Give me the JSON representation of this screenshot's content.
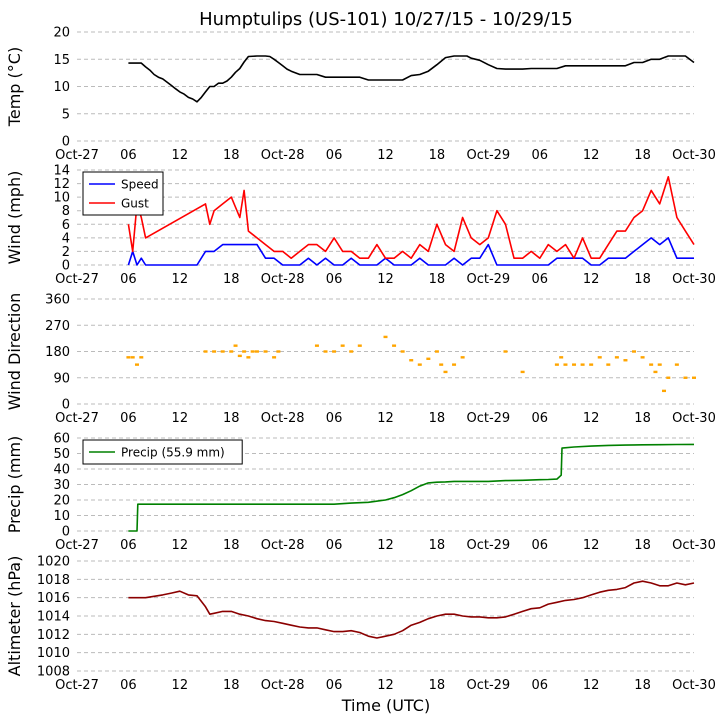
{
  "title": "Humptulips (US-101) 10/27/15 - 10/29/15",
  "xlabel": "Time (UTC)",
  "x_tick_labels": [
    "Oct-27",
    "06",
    "12",
    "18",
    "Oct-28",
    "06",
    "12",
    "18",
    "Oct-29",
    "06",
    "12",
    "18",
    "Oct-30"
  ],
  "x_range_hours": [
    0,
    72
  ],
  "colors": {
    "temp": "#000000",
    "speed": "#0000ff",
    "gust": "#ff0000",
    "direction": "#ffa500",
    "precip": "#008000",
    "altimeter": "#8b0000",
    "grid": "#bbbbbb"
  },
  "chart_data": [
    {
      "type": "line",
      "id": "temp",
      "ylabel": "Temp (°C)",
      "ylim": [
        0,
        20
      ],
      "yticks": [
        0,
        5,
        10,
        15,
        20
      ],
      "grid": true,
      "series": [
        {
          "name": "Temp",
          "color": "#000000",
          "x": [
            6,
            7.5,
            8,
            8.5,
            9,
            9.5,
            10,
            10.5,
            11,
            11.5,
            12,
            12.5,
            13,
            13.5,
            14,
            14.5,
            15,
            15.5,
            16,
            16.5,
            17,
            17.5,
            18,
            18.5,
            19,
            19.5,
            20,
            21,
            22,
            22.5,
            23,
            23.5,
            24,
            24.5,
            25,
            26,
            27,
            28,
            29,
            30,
            31,
            32,
            33,
            34,
            35,
            36,
            37,
            38,
            39,
            40,
            41,
            42,
            43,
            44,
            44.5,
            45,
            45.5,
            46,
            47,
            48,
            49,
            50,
            51,
            52,
            53,
            54,
            55,
            56,
            57,
            58,
            59,
            60,
            61,
            62,
            63,
            64,
            65,
            66,
            67,
            68,
            69,
            70,
            71,
            72
          ],
          "y": [
            14.3,
            14.3,
            13.6,
            13,
            12.2,
            11.7,
            11.4,
            10.8,
            10.2,
            9.6,
            9,
            8.6,
            8,
            7.7,
            7.2,
            8,
            9,
            10,
            10,
            10.6,
            10.6,
            11,
            11.7,
            12.6,
            13.3,
            14.5,
            15.5,
            15.6,
            15.6,
            15.5,
            15,
            14.4,
            13.8,
            13.2,
            12.8,
            12.2,
            12.2,
            12.2,
            11.7,
            11.7,
            11.7,
            11.7,
            11.7,
            11.2,
            11.2,
            11.2,
            11.2,
            11.2,
            12,
            12.2,
            12.8,
            14,
            15.3,
            15.6,
            15.6,
            15.6,
            15.6,
            15.2,
            14.8,
            14,
            13.3,
            13.2,
            13.2,
            13.2,
            13.3,
            13.3,
            13.3,
            13.3,
            13.8,
            13.8,
            13.8,
            13.8,
            13.8,
            13.8,
            13.8,
            13.8,
            14.4,
            14.4,
            15,
            15,
            15.6,
            15.6,
            15.6,
            14.4
          ]
        }
      ]
    },
    {
      "type": "line",
      "id": "wind",
      "ylabel": "Wind (mph)",
      "ylim": [
        0,
        14
      ],
      "yticks": [
        0,
        2,
        4,
        6,
        8,
        10,
        12,
        14
      ],
      "grid": true,
      "legend": {
        "location": "upper-left",
        "entries": [
          "Speed",
          "Gust"
        ]
      },
      "series": [
        {
          "name": "Speed",
          "color": "#0000ff",
          "x": [
            6,
            6.5,
            7,
            7.5,
            8,
            12,
            13,
            14,
            15,
            16,
            17,
            18,
            19,
            20,
            21,
            22,
            23,
            24,
            25,
            26,
            27,
            28,
            29,
            30,
            31,
            32,
            33,
            34,
            35,
            36,
            37,
            38,
            39,
            40,
            41,
            42,
            43,
            44,
            45,
            46,
            47,
            48,
            49,
            50,
            51,
            52,
            53,
            54,
            55,
            56,
            57,
            58,
            59,
            60,
            61,
            62,
            63,
            64,
            65,
            66,
            67,
            68,
            69,
            70,
            71,
            72
          ],
          "y": [
            0,
            2,
            0,
            1,
            0,
            0,
            0,
            0,
            2,
            2,
            3,
            3,
            3,
            3,
            3,
            1,
            1,
            0,
            0,
            0,
            1,
            0,
            1,
            0,
            0,
            1,
            0,
            0,
            0,
            1,
            0,
            0,
            0,
            1,
            0,
            0,
            0,
            1,
            0,
            1,
            1,
            3,
            0,
            0,
            0,
            0,
            0,
            0,
            0,
            1,
            1,
            1,
            1,
            0,
            0,
            1,
            1,
            1,
            2,
            3,
            4,
            3,
            4,
            1,
            1,
            1
          ]
        },
        {
          "name": "Gust",
          "color": "#ff0000",
          "x": [
            6,
            6.5,
            7,
            7.5,
            8,
            15,
            15.5,
            16,
            17,
            18,
            19,
            19.5,
            20,
            21,
            22,
            23,
            24,
            25,
            26,
            27,
            28,
            29,
            30,
            31,
            32,
            33,
            34,
            35,
            36,
            37,
            38,
            39,
            40,
            41,
            42,
            43,
            44,
            45,
            46,
            47,
            48,
            49,
            50,
            51,
            52,
            53,
            54,
            55,
            56,
            57,
            58,
            59,
            60,
            61,
            62,
            63,
            64,
            65,
            66,
            67,
            68,
            69,
            70,
            71,
            72
          ],
          "y": [
            6,
            2,
            9,
            7,
            4,
            9,
            6,
            8,
            9,
            10,
            7,
            11,
            5,
            4,
            3,
            2,
            2,
            1,
            2,
            3,
            3,
            2,
            4,
            2,
            2,
            1,
            1,
            3,
            1,
            1,
            2,
            1,
            3,
            2,
            6,
            3,
            2,
            7,
            4,
            3,
            4,
            8,
            6,
            1,
            1,
            2,
            1,
            3,
            2,
            3,
            1,
            4,
            1,
            1,
            3,
            5,
            5,
            7,
            8,
            11,
            9,
            13,
            7,
            5,
            3
          ]
        }
      ]
    },
    {
      "type": "scatter",
      "id": "direction",
      "ylabel": "Wind Direction",
      "ylim": [
        0,
        360
      ],
      "yticks": [
        0,
        90,
        180,
        270,
        360
      ],
      "grid": true,
      "series": [
        {
          "name": "Direction",
          "color": "#ffa500",
          "x": [
            6,
            6.5,
            7,
            7.5,
            15,
            16,
            17,
            18,
            18.5,
            19,
            19.5,
            20,
            20.5,
            21,
            22,
            23,
            23.5,
            28,
            29,
            30,
            31,
            32,
            33,
            36,
            37,
            38,
            39,
            40,
            41,
            42,
            42.5,
            43,
            44,
            45,
            50,
            52,
            56,
            56.5,
            57,
            58,
            59,
            60,
            61,
            62,
            63,
            64,
            65,
            66,
            67,
            67.5,
            68,
            68.5,
            69,
            70,
            71,
            72
          ],
          "y": [
            160,
            160,
            135,
            160,
            180,
            180,
            180,
            180,
            200,
            165,
            180,
            160,
            180,
            180,
            180,
            160,
            180,
            200,
            180,
            180,
            200,
            180,
            200,
            230,
            200,
            180,
            150,
            135,
            155,
            180,
            135,
            110,
            135,
            160,
            180,
            110,
            135,
            160,
            135,
            135,
            135,
            135,
            160,
            135,
            160,
            150,
            180,
            160,
            135,
            110,
            135,
            45,
            90,
            135,
            90,
            90
          ]
        }
      ]
    },
    {
      "type": "line",
      "id": "precip",
      "ylabel": "Precip (mm)",
      "ylim": [
        0,
        60
      ],
      "yticks": [
        0,
        10,
        20,
        30,
        40,
        50,
        60
      ],
      "grid": true,
      "legend": {
        "location": "upper-left",
        "entries": [
          "Precip (55.9 mm)"
        ]
      },
      "series": [
        {
          "name": "Precip (55.9 mm)",
          "color": "#008000",
          "x": [
            6,
            7,
            7.1,
            16,
            24,
            30,
            32,
            34,
            36,
            37,
            38,
            39,
            40,
            41,
            42,
            43,
            44,
            46,
            48,
            50,
            52,
            54,
            55,
            56,
            56.5,
            56.6,
            58,
            60,
            62,
            64,
            66,
            68,
            70,
            72
          ],
          "y": [
            0,
            0,
            17.3,
            17.3,
            17.3,
            17.3,
            18,
            18.5,
            20,
            21.5,
            23.5,
            26,
            29,
            31,
            31.5,
            31.7,
            32,
            32,
            32,
            32.5,
            32.7,
            33.1,
            33.2,
            33.5,
            36,
            53.5,
            54.2,
            54.8,
            55.2,
            55.4,
            55.6,
            55.7,
            55.8,
            55.9
          ]
        }
      ]
    },
    {
      "type": "line",
      "id": "altimeter",
      "ylabel": "Altimeter (hPa)",
      "ylim": [
        1008,
        1020
      ],
      "yticks": [
        1008,
        1010,
        1012,
        1014,
        1016,
        1018,
        1020
      ],
      "grid": true,
      "series": [
        {
          "name": "Altimeter",
          "color": "#8b0000",
          "x": [
            6,
            8,
            10,
            11,
            12,
            13,
            14,
            15,
            15.5,
            16,
            17,
            18,
            19,
            20,
            21,
            22,
            23,
            24,
            25,
            26,
            27,
            28,
            29,
            30,
            31,
            32,
            33,
            34,
            35,
            36,
            37,
            38,
            39,
            40,
            41,
            42,
            43,
            44,
            45,
            46,
            47,
            48,
            49,
            50,
            51,
            52,
            53,
            54,
            55,
            56,
            57,
            58,
            59,
            60,
            61,
            62,
            63,
            64,
            65,
            66,
            67,
            68,
            69,
            70,
            71,
            72
          ],
          "y": [
            1016,
            1016,
            1016.3,
            1016.5,
            1016.7,
            1016.3,
            1016.2,
            1015,
            1014.2,
            1014.3,
            1014.5,
            1014.5,
            1014.2,
            1014,
            1013.7,
            1013.5,
            1013.4,
            1013.2,
            1013,
            1012.8,
            1012.7,
            1012.7,
            1012.5,
            1012.3,
            1012.3,
            1012.4,
            1012.2,
            1011.8,
            1011.6,
            1011.8,
            1012,
            1012.4,
            1013,
            1013.3,
            1013.7,
            1014,
            1014.2,
            1014.2,
            1014,
            1013.9,
            1013.9,
            1013.8,
            1013.8,
            1013.9,
            1014.2,
            1014.5,
            1014.8,
            1014.9,
            1015.3,
            1015.5,
            1015.7,
            1015.8,
            1016,
            1016.3,
            1016.6,
            1016.8,
            1016.9,
            1017.1,
            1017.6,
            1017.8,
            1017.6,
            1017.3,
            1017.3,
            1017.6,
            1017.4,
            1017.6
          ]
        }
      ]
    }
  ]
}
